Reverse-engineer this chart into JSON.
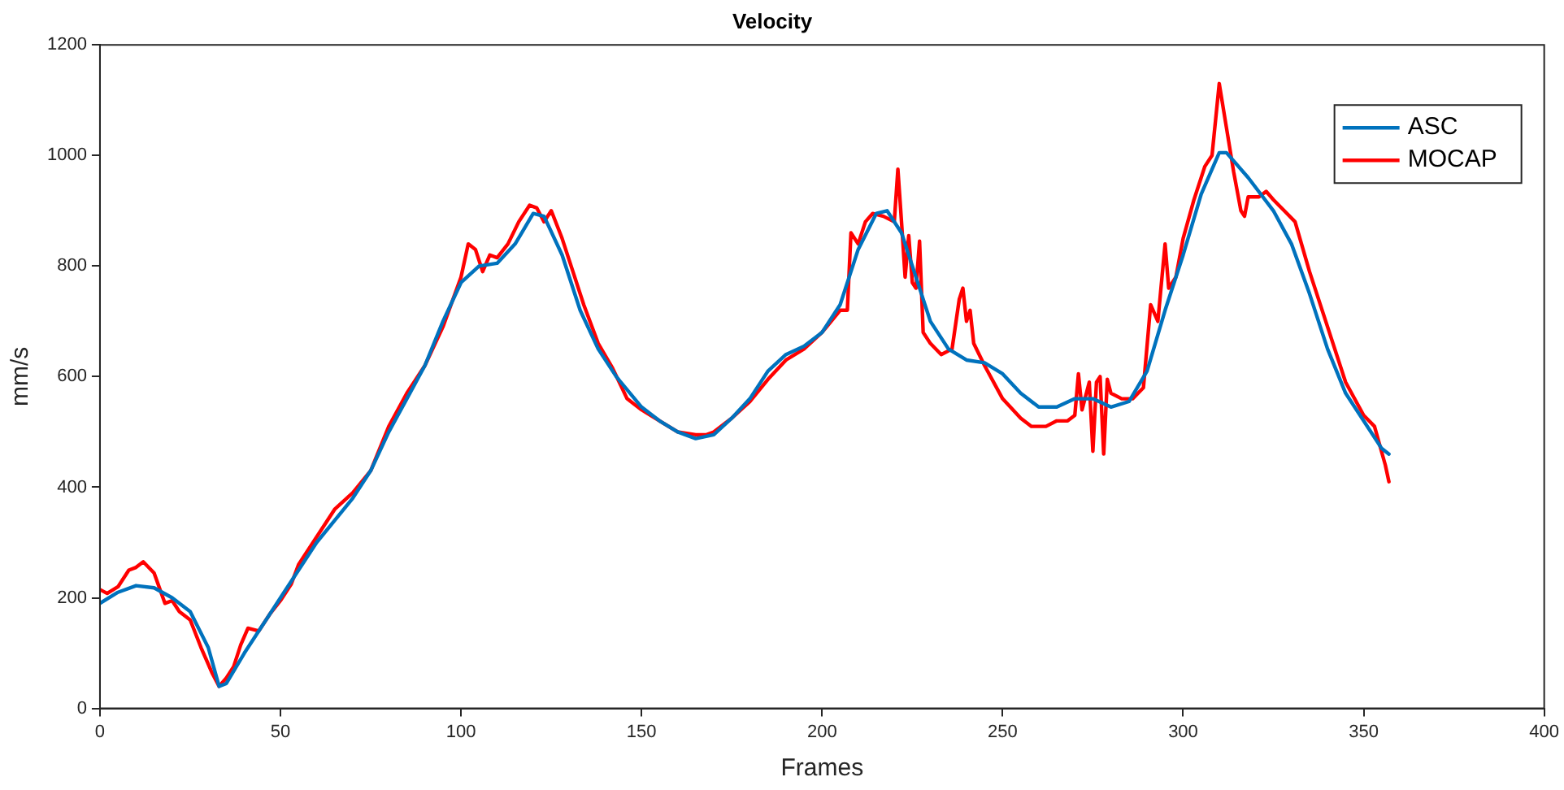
{
  "chart_data": {
    "type": "line",
    "title": "Velocity",
    "xlabel": "Frames",
    "ylabel": "mm/s",
    "xlim": [
      0,
      400
    ],
    "xticks": [
      0,
      50,
      100,
      150,
      200,
      250,
      300,
      350,
      400
    ],
    "ylim": [
      0,
      1200
    ],
    "yticks": [
      0,
      200,
      400,
      600,
      800,
      1000,
      1200
    ],
    "grid": false,
    "legend": "top right",
    "marker": "none",
    "line_style": "solid",
    "series": [
      {
        "name": "ASC",
        "color": "#0072bd",
        "x": [
          0,
          5,
          10,
          15,
          20,
          25,
          30,
          33,
          35,
          40,
          45,
          50,
          55,
          60,
          65,
          70,
          75,
          80,
          85,
          90,
          95,
          100,
          105,
          110,
          115,
          120,
          123,
          128,
          133,
          138,
          143,
          150,
          155,
          160,
          165,
          170,
          175,
          180,
          185,
          190,
          195,
          200,
          205,
          210,
          215,
          218,
          222,
          226,
          230,
          235,
          240,
          245,
          250,
          255,
          260,
          265,
          270,
          275,
          280,
          285,
          290,
          295,
          300,
          305,
          310,
          312,
          318,
          325,
          330,
          335,
          340,
          345,
          350,
          355,
          357
        ],
        "values": [
          190,
          210,
          222,
          218,
          200,
          175,
          110,
          40,
          45,
          100,
          150,
          200,
          250,
          300,
          340,
          380,
          430,
          500,
          560,
          620,
          700,
          770,
          800,
          805,
          840,
          895,
          890,
          820,
          720,
          650,
          600,
          545,
          520,
          500,
          488,
          495,
          525,
          560,
          610,
          640,
          655,
          680,
          730,
          830,
          895,
          900,
          860,
          780,
          700,
          650,
          630,
          625,
          605,
          570,
          545,
          545,
          560,
          560,
          545,
          555,
          610,
          720,
          820,
          930,
          1005,
          1005,
          960,
          900,
          840,
          750,
          650,
          570,
          520,
          470,
          460
        ]
      },
      {
        "name": "MOCAP",
        "color": "#ff0000",
        "x": [
          0,
          2,
          5,
          8,
          10,
          12,
          15,
          18,
          20,
          22,
          25,
          28,
          31,
          33,
          35,
          37,
          39,
          41,
          44,
          47,
          50,
          53,
          55,
          60,
          65,
          70,
          75,
          80,
          85,
          90,
          95,
          100,
          102,
          104,
          106,
          108,
          110,
          113,
          116,
          119,
          121,
          123,
          125,
          128,
          131,
          134,
          138,
          142,
          146,
          150,
          155,
          160,
          165,
          168,
          170,
          173,
          175,
          180,
          185,
          190,
          195,
          200,
          205,
          207,
          208,
          210,
          212,
          214,
          217,
          220,
          221,
          222,
          223,
          224,
          225,
          226,
          227,
          228,
          230,
          233,
          236,
          238,
          239,
          240,
          241,
          242,
          245,
          250,
          255,
          258,
          262,
          265,
          268,
          270,
          271,
          272,
          274,
          275,
          276,
          277,
          278,
          279,
          280,
          283,
          286,
          289,
          291,
          293,
          295,
          296,
          298,
          300,
          303,
          306,
          308,
          310,
          312,
          314,
          316,
          317,
          318,
          321,
          323,
          325,
          328,
          331,
          335,
          340,
          345,
          350,
          353,
          356,
          357
        ],
        "values": [
          215,
          208,
          220,
          250,
          255,
          265,
          245,
          190,
          195,
          175,
          160,
          110,
          65,
          40,
          55,
          75,
          115,
          145,
          140,
          170,
          195,
          225,
          260,
          310,
          360,
          390,
          430,
          510,
          570,
          620,
          690,
          780,
          840,
          830,
          790,
          820,
          815,
          840,
          880,
          910,
          905,
          880,
          900,
          850,
          790,
          730,
          660,
          615,
          560,
          540,
          520,
          500,
          495,
          495,
          500,
          515,
          525,
          555,
          595,
          630,
          650,
          680,
          720,
          720,
          860,
          840,
          880,
          895,
          890,
          880,
          975,
          880,
          780,
          855,
          770,
          760,
          845,
          680,
          660,
          640,
          650,
          740,
          760,
          700,
          720,
          660,
          620,
          560,
          525,
          510,
          510,
          520,
          520,
          530,
          605,
          540,
          590,
          465,
          590,
          600,
          460,
          595,
          570,
          560,
          560,
          580,
          730,
          700,
          840,
          760,
          780,
          850,
          920,
          980,
          1000,
          1130,
          1050,
          970,
          900,
          890,
          925,
          925,
          935,
          920,
          900,
          880,
          790,
          690,
          590,
          530,
          510,
          440,
          410
        ]
      }
    ]
  }
}
